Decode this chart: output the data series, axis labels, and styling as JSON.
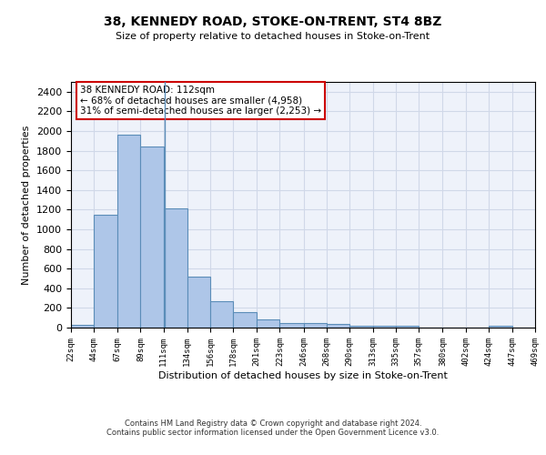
{
  "title": "38, KENNEDY ROAD, STOKE-ON-TRENT, ST4 8BZ",
  "subtitle": "Size of property relative to detached houses in Stoke-on-Trent",
  "xlabel": "Distribution of detached houses by size in Stoke-on-Trent",
  "ylabel": "Number of detached properties",
  "bar_color": "#aec6e8",
  "bar_edge_color": "#5b8db8",
  "grid_color": "#d0d8e8",
  "background_color": "#eef2fa",
  "property_line_x": 112,
  "annotation_text": "38 KENNEDY ROAD: 112sqm\n← 68% of detached houses are smaller (4,958)\n31% of semi-detached houses are larger (2,253) →",
  "annotation_box_color": "#ffffff",
  "annotation_box_edge": "#cc0000",
  "bin_edges": [
    22,
    44,
    67,
    89,
    111,
    134,
    156,
    178,
    201,
    223,
    246,
    268,
    290,
    313,
    335,
    357,
    380,
    402,
    424,
    447,
    469
  ],
  "bar_heights": [
    30,
    1150,
    1960,
    1840,
    1210,
    515,
    265,
    155,
    80,
    50,
    45,
    40,
    22,
    20,
    15,
    0,
    0,
    0,
    20,
    0
  ],
  "ylim": [
    0,
    2500
  ],
  "yticks": [
    0,
    200,
    400,
    600,
    800,
    1000,
    1200,
    1400,
    1600,
    1800,
    2000,
    2200,
    2400
  ],
  "footer_line1": "Contains HM Land Registry data © Crown copyright and database right 2024.",
  "footer_line2": "Contains public sector information licensed under the Open Government Licence v3.0."
}
